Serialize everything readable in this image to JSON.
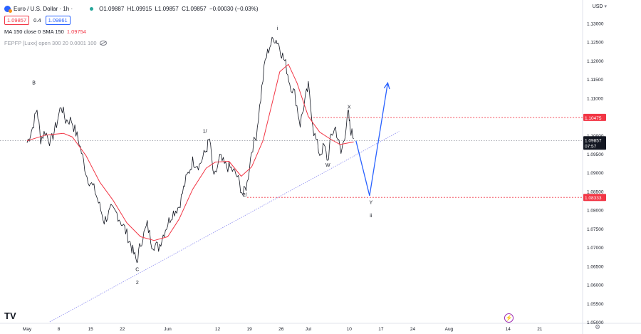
{
  "header": {
    "title": "Euro / U.S. Dollar · 1h ·",
    "ohlc": {
      "o": "O1.09887",
      "h": "H1.09915",
      "l": "L1.09857",
      "c": "C1.09857",
      "chg": "−0.00030 (−0.03%)"
    },
    "sell_price": "1.09857",
    "spread": "0.4",
    "buy_price": "1.09861",
    "indicator1": "MA 150 close 0 SMA 150",
    "indicator1_value": "1.09754",
    "indicator2": "FEPFP [Luxx] open 300 20 0.0001 100",
    "currency": "USD"
  },
  "colors": {
    "price_line": "#131722",
    "ma_line": "#f23645",
    "trendline": "#8c8cf0",
    "projection": "#2962ff",
    "level_red": "#f23645",
    "current_price_bg": "#131722"
  },
  "chart_data": {
    "type": "line",
    "title": "Euro / U.S. Dollar · 1h",
    "xlabel": "",
    "ylabel": "",
    "ylim": [
      1.05,
      1.132
    ],
    "x_ticks": [
      "May",
      "8",
      "15",
      "22",
      "Jun",
      "12",
      "19",
      "26",
      "Jul",
      "10",
      "17",
      "24",
      "Aug",
      "14",
      "21"
    ],
    "y_ticks": [
      "1.13000",
      "1.12500",
      "1.12000",
      "1.11500",
      "1.11000",
      "1.10500",
      "1.10000",
      "1.09500",
      "1.09000",
      "1.08500",
      "1.08000",
      "1.07500",
      "1.07000",
      "1.06500",
      "1.06000",
      "1.05500",
      "1.05000"
    ],
    "price_path": [
      [
        0,
        1.098
      ],
      [
        1.2,
        1.102
      ],
      [
        2.2,
        1.107
      ],
      [
        3,
        1.099
      ],
      [
        4,
        1.101
      ],
      [
        5.2,
        1.098
      ],
      [
        6.5,
        1.103
      ],
      [
        7.5,
        1.108
      ],
      [
        8.5,
        1.104
      ],
      [
        9.8,
        1.104
      ],
      [
        11.5,
        1.098
      ],
      [
        13.2,
        1.089
      ],
      [
        15,
        1.085
      ],
      [
        17,
        1.077
      ],
      [
        18.5,
        1.08
      ],
      [
        19.8,
        1.079
      ],
      [
        21.5,
        1.075
      ],
      [
        22.5,
        1.072
      ],
      [
        23.3,
        1.069
      ],
      [
        24.2,
        1.066
      ],
      [
        25,
        1.071
      ],
      [
        26.5,
        1.076
      ],
      [
        27.5,
        1.071
      ],
      [
        29,
        1.07
      ],
      [
        30.5,
        1.075
      ],
      [
        32,
        1.079
      ],
      [
        33.5,
        1.081
      ],
      [
        35,
        1.088
      ],
      [
        36.5,
        1.093
      ],
      [
        38,
        1.092
      ],
      [
        39.5,
        1.096
      ],
      [
        40.2,
        1.099
      ],
      [
        41.2,
        1.088
      ],
      [
        42.5,
        1.094
      ],
      [
        43.5,
        1.092
      ],
      [
        45,
        1.091
      ],
      [
        46.3,
        1.089
      ],
      [
        47.6,
        1.084
      ],
      [
        48.5,
        1.087
      ],
      [
        49.5,
        1.096
      ],
      [
        50.5,
        1.1
      ],
      [
        51.5,
        1.11
      ],
      [
        52.5,
        1.12
      ],
      [
        53.5,
        1.124
      ],
      [
        54.5,
        1.126
      ],
      [
        55.3,
        1.125
      ],
      [
        56.1,
        1.122
      ],
      [
        57,
        1.119
      ],
      [
        57.9,
        1.114
      ],
      [
        59,
        1.111
      ],
      [
        60.2,
        1.103
      ],
      [
        61.2,
        1.109
      ],
      [
        62,
        1.113
      ],
      [
        63.2,
        1.101
      ],
      [
        64.5,
        1.095
      ],
      [
        65.5,
        1.097
      ],
      [
        66.3,
        1.093
      ],
      [
        67,
        1.1
      ],
      [
        68,
        1.102
      ],
      [
        69.2,
        1.095
      ],
      [
        70,
        1.1
      ],
      [
        70.8,
        1.106
      ],
      [
        71.2,
        1.102
      ],
      [
        72,
        1.099
      ]
    ],
    "ma_path": [
      [
        0,
        1.0985
      ],
      [
        4,
        1.1
      ],
      [
        8,
        1.1005
      ],
      [
        10,
        1.0995
      ],
      [
        13,
        1.0945
      ],
      [
        16,
        1.0875
      ],
      [
        19,
        1.0825
      ],
      [
        22,
        1.0765
      ],
      [
        25,
        1.0728
      ],
      [
        28,
        1.0718
      ],
      [
        31,
        1.0728
      ],
      [
        33.5,
        1.0775
      ],
      [
        36.5,
        1.0855
      ],
      [
        39.5,
        1.0912
      ],
      [
        41.5,
        1.0928
      ],
      [
        44.5,
        1.093
      ],
      [
        47.2,
        1.089
      ],
      [
        49.5,
        1.0915
      ],
      [
        52,
        1.0985
      ],
      [
        54.2,
        1.1095
      ],
      [
        55.7,
        1.117
      ],
      [
        57.6,
        1.119
      ],
      [
        59.5,
        1.114
      ],
      [
        62,
        1.105
      ],
      [
        64.5,
        1.1008
      ],
      [
        66.8,
        1.099
      ],
      [
        69,
        1.0975
      ],
      [
        72,
        1.0982
      ]
    ],
    "trendline": [
      [
        5,
        1.05
      ],
      [
        82,
        1.101
      ]
    ],
    "projection": [
      [
        72.5,
        1.0985
      ],
      [
        75.5,
        1.0838
      ],
      [
        79.5,
        1.114
      ]
    ],
    "levels": [
      {
        "value": 1.10475,
        "label": "1.10475",
        "x_start": 62.5
      },
      {
        "value": 1.08333,
        "label": "1.08333",
        "x_start": 48.5
      }
    ],
    "current_price": {
      "value": 1.09857,
      "label": "1.09857",
      "countdown": "07:57"
    },
    "wave_labels": [
      {
        "text": "B",
        "x": 1.5,
        "y": 1.1125,
        "pos": "above"
      },
      {
        "text": "C",
        "x": 24.3,
        "y": 1.0655,
        "pos": "below"
      },
      {
        "text": "2",
        "x": 24.3,
        "y": 1.0635,
        "pos": "below2"
      },
      {
        "text": "1/",
        "x": 39.2,
        "y": 1.0995,
        "pos": "above"
      },
      {
        "text": "2/",
        "x": 48,
        "y": 1.0855,
        "pos": "below"
      },
      {
        "text": "i",
        "x": 55.2,
        "y": 1.127,
        "pos": "above"
      },
      {
        "text": "X",
        "x": 71,
        "y": 1.106,
        "pos": "above"
      },
      {
        "text": "W",
        "x": 66.3,
        "y": 1.0935,
        "pos": "below"
      },
      {
        "text": "Y",
        "x": 75.8,
        "y": 1.0835,
        "pos": "below"
      },
      {
        "text": "ii",
        "x": 75.8,
        "y": 1.0815,
        "pos": "below2"
      }
    ]
  },
  "footer": {
    "logo": "TV",
    "flash": "⚡",
    "gear": "⚙"
  }
}
